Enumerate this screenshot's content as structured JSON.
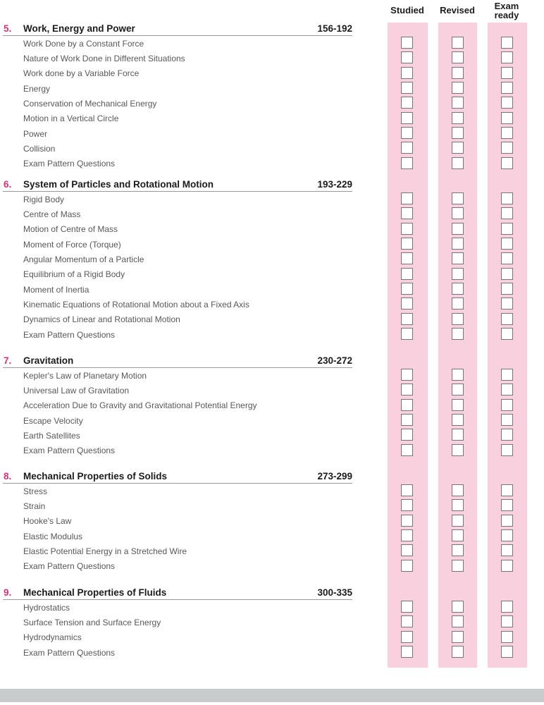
{
  "header": {
    "columns": [
      {
        "id": "studied",
        "label": "Studied"
      },
      {
        "id": "revised",
        "label": "Revised"
      },
      {
        "id": "examready",
        "label": "Exam ready"
      }
    ]
  },
  "sections": [
    {
      "number": "5.",
      "title": "Work, Energy and Power",
      "pages": "156-192",
      "topics": [
        "Work Done by a Constant Force",
        "Nature of Work Done in Different Situations",
        "Work done by a Variable Force",
        "Energy",
        "Conservation of Mechanical Energy",
        "Motion in a Vertical Circle",
        "Power",
        "Collision",
        "Exam Pattern Questions"
      ]
    },
    {
      "number": "6.",
      "title": "System of Particles and Rotational Motion",
      "pages": "193-229",
      "topics": [
        "Rigid Body",
        "Centre of Mass",
        "Motion of Centre of Mass",
        "Moment of Force (Torque)",
        "Angular Momentum of a Particle",
        "Equilibrium of a Rigid Body",
        "Moment of Inertia",
        "Kinematic Equations of Rotational Motion about a Fixed Axis",
        "Dynamics of Linear and Rotational Motion",
        "Exam Pattern Questions"
      ]
    },
    {
      "number": "7.",
      "title": "Gravitation",
      "pages": "230-272",
      "topics": [
        "Kepler's Law of Planetary Motion",
        "Universal Law of Gravitation",
        "Acceleration Due to Gravity and Gravitational Potential Energy",
        "Escape Velocity",
        "Earth Satellites",
        "Exam Pattern Questions"
      ]
    },
    {
      "number": "8.",
      "title": "Mechanical Properties of Solids",
      "pages": "273-299",
      "topics": [
        "Stress",
        "Strain",
        "Hooke's Law",
        "Elastic Modulus",
        "Elastic Potential Energy in a Stretched Wire",
        "Exam Pattern Questions"
      ]
    },
    {
      "number": "9.",
      "title": "Mechanical Properties of Fluids",
      "pages": "300-335",
      "topics": [
        "Hydrostatics",
        "Surface Tension and Surface Energy",
        "Hydrodynamics",
        "Exam Pattern Questions"
      ]
    }
  ],
  "checkboxes": {
    "state": "unchecked",
    "per_topic_columns": [
      "Studied",
      "Revised",
      "Exam ready"
    ]
  },
  "colors": {
    "column_pink": "#f8d0de",
    "chapter_number_accent": "#d63371",
    "heading_text": "#1b1b1b",
    "topic_text": "#58585a",
    "heading_rule_gray": "#97999c",
    "checkbox_border": "#747679",
    "footer_bar_gray": "#c9cccd"
  }
}
